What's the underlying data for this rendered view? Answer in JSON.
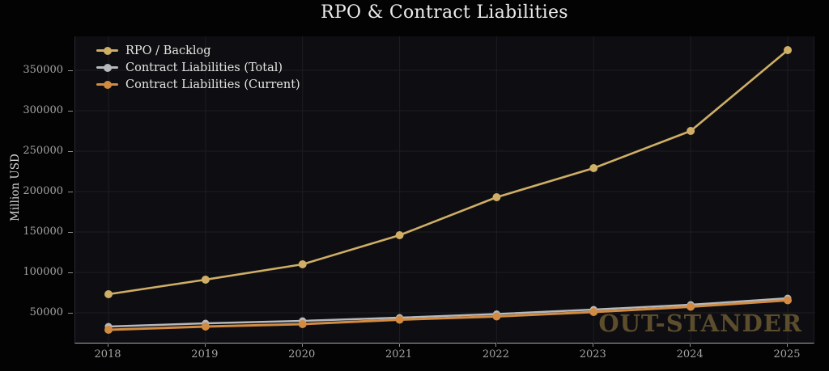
{
  "chart": {
    "title": "RPO & Contract Liabilities",
    "ylabel": "Million USD"
  },
  "watermark": {
    "text": "OUT-STANDER"
  },
  "colors": {
    "background": "#030304",
    "plot_background": "#0e0e12",
    "grid": "#1c1c22",
    "bottom_spine": "#a9a9a9",
    "tick_label": "#a6a4a1",
    "title_text": "#edecea",
    "legend_text": "#e6e4e1",
    "watermark_text": "#5c4e2d",
    "rpo_gold": "#cfae66",
    "liabilities_total_gray": "#b5b8bc",
    "liabilities_current_orange": "#d28b41"
  },
  "chart_data": {
    "type": "line",
    "title": "RPO & Contract Liabilities",
    "xlabel": "",
    "ylabel": "Million USD",
    "categories": [
      2018,
      2019,
      2020,
      2021,
      2022,
      2023,
      2024,
      2025
    ],
    "series": [
      {
        "name": "RPO / Backlog",
        "color": "#cfae66",
        "line_width": 2.6,
        "marker_radius": 5,
        "values": [
          73000,
          91000,
          110000,
          146000,
          193000,
          229000,
          275000,
          375000
        ]
      },
      {
        "name": "Contract Liabilities (Total)",
        "color": "#b5b8bc",
        "line_width": 2.4,
        "marker_radius": 4.5,
        "values": [
          33000,
          37000,
          40000,
          44000,
          48500,
          54000,
          60000,
          68000
        ]
      },
      {
        "name": "Contract Liabilities (Current)",
        "color": "#d28b41",
        "line_width": 3,
        "marker_radius": 5,
        "values": [
          29000,
          33000,
          36000,
          41500,
          45500,
          51000,
          57500,
          65500
        ]
      }
    ],
    "yticks": [
      50000,
      100000,
      150000,
      200000,
      250000,
      300000,
      350000
    ],
    "ylim": [
      12000,
      392000
    ],
    "grid": true,
    "legend_position": "upper-left"
  }
}
